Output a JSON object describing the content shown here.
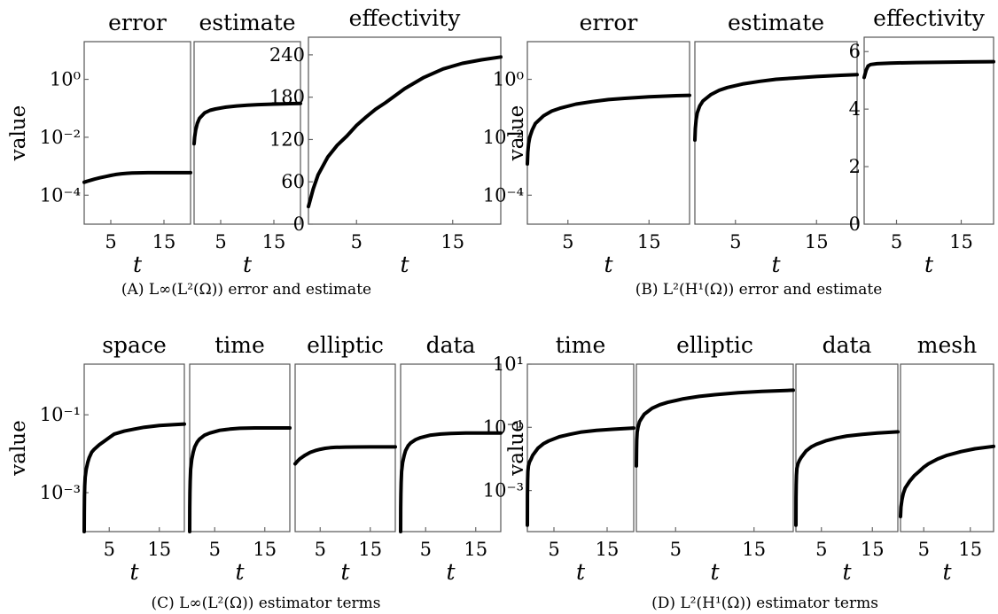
{
  "chart_data": [
    {
      "id": "A",
      "caption": "(A) L∞(L²(Ω)) error and estimate",
      "ylabel": "value",
      "panels": [
        {
          "title": "error",
          "type": "line",
          "xlabel": "t",
          "yscale": "log",
          "ylim": [
            1e-05,
            20
          ],
          "xlim": [
            0,
            20
          ],
          "yticks": [
            {
              "v": 1,
              "label": "10⁰"
            },
            {
              "v": 0.01,
              "label": "10⁻²"
            },
            {
              "v": 0.0001,
              "label": "10⁻⁴"
            }
          ],
          "xticks": [
            {
              "v": 5,
              "label": "5"
            },
            {
              "v": 15,
              "label": "15"
            }
          ],
          "x": [
            0,
            0.5,
            1,
            2,
            3,
            4,
            5,
            6,
            7,
            8,
            9,
            10,
            12,
            14,
            16,
            18,
            20
          ],
          "y": [
            0.00028,
            0.0003,
            0.00032,
            0.00036,
            0.0004,
            0.00044,
            0.00048,
            0.00052,
            0.00055,
            0.00057,
            0.00058,
            0.00059,
            0.0006,
            0.0006,
            0.0006,
            0.0006,
            0.0006
          ]
        },
        {
          "title": "estimate",
          "type": "line",
          "xlabel": "t",
          "yscale": "log",
          "ylim": [
            1e-05,
            20
          ],
          "xlim": [
            0,
            20
          ],
          "xticks": [
            {
              "v": 5,
              "label": "5"
            },
            {
              "v": 15,
              "label": "15"
            }
          ],
          "x": [
            0,
            0.1,
            0.3,
            0.6,
            1,
            2,
            3,
            4,
            6,
            8,
            10,
            12,
            15,
            18,
            20
          ],
          "y": [
            0.006,
            0.01,
            0.018,
            0.03,
            0.045,
            0.07,
            0.085,
            0.095,
            0.11,
            0.12,
            0.128,
            0.134,
            0.14,
            0.145,
            0.148
          ]
        },
        {
          "title": "effectivity",
          "type": "line",
          "xlabel": "t",
          "yscale": "linear",
          "ylim": [
            0,
            265
          ],
          "xlim": [
            0,
            20
          ],
          "yticks": [
            {
              "v": 0,
              "label": "0"
            },
            {
              "v": 60,
              "label": "60"
            },
            {
              "v": 120,
              "label": "120"
            },
            {
              "v": 180,
              "label": "180"
            },
            {
              "v": 240,
              "label": "240"
            }
          ],
          "xticks": [
            {
              "v": 5,
              "label": "5"
            },
            {
              "v": 15,
              "label": "15"
            }
          ],
          "x": [
            0,
            0.5,
            1,
            2,
            3,
            4,
            5,
            6,
            7,
            8,
            9,
            10,
            12,
            14,
            16,
            18,
            20
          ],
          "y": [
            25,
            50,
            70,
            95,
            112,
            125,
            140,
            152,
            163,
            172,
            182,
            192,
            208,
            220,
            228,
            233,
            237
          ]
        }
      ]
    },
    {
      "id": "B",
      "caption": "(B) L²(H¹(Ω)) error and estimate",
      "ylabel": "value",
      "panels": [
        {
          "title": "error",
          "type": "line",
          "xlabel": "t",
          "yscale": "log",
          "ylim": [
            1e-05,
            20
          ],
          "xlim": [
            0,
            20
          ],
          "yticks": [
            {
              "v": 1,
              "label": "10⁰"
            },
            {
              "v": 0.01,
              "label": "10⁻²"
            },
            {
              "v": 0.0001,
              "label": "10⁻⁴"
            }
          ],
          "xticks": [
            {
              "v": 5,
              "label": "5"
            },
            {
              "v": 15,
              "label": "15"
            }
          ],
          "x": [
            0,
            0.05,
            0.15,
            0.3,
            0.6,
            1,
            2,
            3,
            4,
            6,
            8,
            10,
            12,
            15,
            18,
            20
          ],
          "y": [
            0.0012,
            0.003,
            0.006,
            0.01,
            0.018,
            0.03,
            0.055,
            0.08,
            0.1,
            0.14,
            0.17,
            0.2,
            0.22,
            0.25,
            0.27,
            0.28
          ]
        },
        {
          "title": "estimate",
          "type": "line",
          "xlabel": "t",
          "yscale": "log",
          "ylim": [
            1e-05,
            20
          ],
          "xlim": [
            0,
            20
          ],
          "xticks": [
            {
              "v": 5,
              "label": "5"
            },
            {
              "v": 15,
              "label": "15"
            }
          ],
          "x": [
            0,
            0.05,
            0.15,
            0.3,
            0.6,
            1,
            2,
            3,
            4,
            6,
            8,
            10,
            12,
            15,
            18,
            20
          ],
          "y": [
            0.008,
            0.02,
            0.04,
            0.07,
            0.12,
            0.18,
            0.3,
            0.42,
            0.52,
            0.7,
            0.85,
            1.0,
            1.1,
            1.25,
            1.38,
            1.45
          ]
        },
        {
          "title": "effectivity",
          "type": "line",
          "xlabel": "t",
          "yscale": "linear",
          "ylim": [
            0,
            6.5
          ],
          "xlim": [
            0,
            20
          ],
          "yticks": [
            {
              "v": 0,
              "label": "0"
            },
            {
              "v": 2,
              "label": "2"
            },
            {
              "v": 4,
              "label": "4"
            },
            {
              "v": 6,
              "label": "6"
            }
          ],
          "xticks": [
            {
              "v": 5,
              "label": "5"
            },
            {
              "v": 15,
              "label": "15"
            }
          ],
          "x": [
            0,
            0.3,
            0.6,
            1,
            2,
            4,
            8,
            12,
            16,
            20
          ],
          "y": [
            5.1,
            5.35,
            5.5,
            5.55,
            5.58,
            5.6,
            5.62,
            5.63,
            5.64,
            5.65
          ]
        }
      ]
    },
    {
      "id": "C",
      "caption": "(C) L∞(L²(Ω)) estimator terms",
      "ylabel": "value",
      "panels": [
        {
          "title": "space",
          "type": "line",
          "xlabel": "t",
          "yscale": "log",
          "ylim": [
            0.0001,
            2
          ],
          "xlim": [
            0,
            20
          ],
          "yticks": [
            {
              "v": 0.1,
              "label": "10⁻¹"
            },
            {
              "v": 0.001,
              "label": "10⁻³"
            }
          ],
          "xticks": [
            {
              "v": 5,
              "label": "5"
            },
            {
              "v": 15,
              "label": "15"
            }
          ],
          "x": [
            0,
            0.02,
            0.05,
            0.1,
            0.2,
            0.4,
            0.7,
            1,
            1.5,
            2,
            3,
            4,
            5,
            6,
            8,
            10,
            12,
            15,
            18,
            20
          ],
          "y": [
            0.0001,
            0.0003,
            0.0008,
            0.0015,
            0.0025,
            0.004,
            0.006,
            0.008,
            0.011,
            0.013,
            0.017,
            0.021,
            0.026,
            0.032,
            0.038,
            0.043,
            0.048,
            0.053,
            0.056,
            0.058
          ]
        },
        {
          "title": "time",
          "type": "line",
          "xlabel": "t",
          "yscale": "log",
          "ylim": [
            0.0001,
            2
          ],
          "xlim": [
            0,
            20
          ],
          "xticks": [
            {
              "v": 5,
              "label": "5"
            },
            {
              "v": 15,
              "label": "15"
            }
          ],
          "x": [
            0,
            0.02,
            0.05,
            0.1,
            0.2,
            0.4,
            0.7,
            1,
            1.5,
            2,
            3,
            4,
            6,
            8,
            10,
            13,
            16,
            20
          ],
          "y": [
            0.0001,
            0.0004,
            0.001,
            0.002,
            0.004,
            0.007,
            0.011,
            0.015,
            0.02,
            0.024,
            0.03,
            0.034,
            0.04,
            0.043,
            0.045,
            0.046,
            0.046,
            0.046
          ]
        },
        {
          "title": "elliptic",
          "type": "line",
          "xlabel": "t",
          "yscale": "log",
          "ylim": [
            0.0001,
            2
          ],
          "xlim": [
            0,
            20
          ],
          "xticks": [
            {
              "v": 5,
              "label": "5"
            },
            {
              "v": 15,
              "label": "15"
            }
          ],
          "x": [
            0,
            0.5,
            1,
            2,
            3,
            4,
            5,
            6,
            7,
            8,
            10,
            12,
            15,
            18,
            20
          ],
          "y": [
            0.0055,
            0.0065,
            0.0075,
            0.0092,
            0.0108,
            0.012,
            0.013,
            0.0138,
            0.0143,
            0.0146,
            0.0148,
            0.0149,
            0.015,
            0.015,
            0.015
          ]
        },
        {
          "title": "data",
          "type": "line",
          "xlabel": "t",
          "yscale": "log",
          "ylim": [
            0.0001,
            2
          ],
          "xlim": [
            0,
            20
          ],
          "xticks": [
            {
              "v": 5,
              "label": "5"
            },
            {
              "v": 15,
              "label": "15"
            }
          ],
          "x": [
            0,
            0.02,
            0.05,
            0.1,
            0.2,
            0.4,
            0.7,
            1,
            1.5,
            2,
            3,
            4,
            6,
            8,
            10,
            13,
            16,
            20
          ],
          "y": [
            0.0001,
            0.0004,
            0.0009,
            0.0018,
            0.0035,
            0.006,
            0.009,
            0.012,
            0.016,
            0.019,
            0.023,
            0.026,
            0.03,
            0.032,
            0.033,
            0.034,
            0.034,
            0.034
          ]
        }
      ]
    },
    {
      "id": "D",
      "caption": "(D) L²(H¹(Ω)) estimator terms",
      "ylabel": "value",
      "panels": [
        {
          "title": "time",
          "type": "line",
          "xlabel": "t",
          "yscale": "log",
          "ylim": [
            5e-05,
            10
          ],
          "xlim": [
            0,
            20
          ],
          "yticks": [
            {
              "v": 10,
              "label": "10¹"
            },
            {
              "v": 0.1,
              "label": "10⁻¹"
            },
            {
              "v": 0.001,
              "label": "10⁻³"
            }
          ],
          "xticks": [
            {
              "v": 5,
              "label": "5"
            },
            {
              "v": 15,
              "label": "15"
            }
          ],
          "x": [
            0,
            0.02,
            0.05,
            0.1,
            0.2,
            0.4,
            0.7,
            1,
            2,
            3,
            4,
            6,
            8,
            10,
            13,
            16,
            20
          ],
          "y": [
            8e-05,
            0.0007,
            0.002,
            0.004,
            0.006,
            0.008,
            0.01,
            0.013,
            0.022,
            0.03,
            0.037,
            0.05,
            0.06,
            0.07,
            0.08,
            0.087,
            0.095
          ]
        },
        {
          "title": "elliptic",
          "type": "line",
          "xlabel": "t",
          "yscale": "log",
          "ylim": [
            5e-05,
            10
          ],
          "xlim": [
            0,
            20
          ],
          "xticks": [
            {
              "v": 5,
              "label": "5"
            },
            {
              "v": 15,
              "label": "15"
            }
          ],
          "x": [
            0,
            0.02,
            0.05,
            0.1,
            0.2,
            0.4,
            0.7,
            1,
            2,
            3,
            4,
            6,
            8,
            10,
            13,
            16,
            20
          ],
          "y": [
            0.006,
            0.02,
            0.04,
            0.07,
            0.1,
            0.15,
            0.2,
            0.26,
            0.4,
            0.52,
            0.62,
            0.8,
            0.95,
            1.08,
            1.25,
            1.38,
            1.5
          ]
        },
        {
          "title": "data",
          "type": "line",
          "xlabel": "t",
          "yscale": "log",
          "ylim": [
            5e-05,
            10
          ],
          "xlim": [
            0,
            20
          ],
          "xticks": [
            {
              "v": 5,
              "label": "5"
            },
            {
              "v": 15,
              "label": "15"
            }
          ],
          "x": [
            0,
            0.02,
            0.05,
            0.1,
            0.2,
            0.4,
            0.7,
            1,
            2,
            3,
            4,
            6,
            8,
            10,
            13,
            16,
            20
          ],
          "y": [
            8e-05,
            0.0006,
            0.0015,
            0.003,
            0.005,
            0.007,
            0.009,
            0.011,
            0.018,
            0.024,
            0.029,
            0.038,
            0.046,
            0.053,
            0.06,
            0.066,
            0.072
          ]
        },
        {
          "title": "mesh",
          "type": "line",
          "xlabel": "t",
          "yscale": "log",
          "ylim": [
            5e-05,
            10
          ],
          "xlim": [
            0,
            20
          ],
          "xticks": [
            {
              "v": 5,
              "label": "5"
            },
            {
              "v": 15,
              "label": "15"
            }
          ],
          "x": [
            0,
            0.1,
            0.3,
            0.6,
            1,
            2,
            3,
            4,
            5,
            6,
            8,
            10,
            13,
            16,
            20
          ],
          "y": [
            0.00015,
            0.0003,
            0.0005,
            0.0008,
            0.0012,
            0.002,
            0.003,
            0.004,
            0.0055,
            0.007,
            0.01,
            0.013,
            0.017,
            0.021,
            0.025
          ]
        }
      ]
    }
  ]
}
